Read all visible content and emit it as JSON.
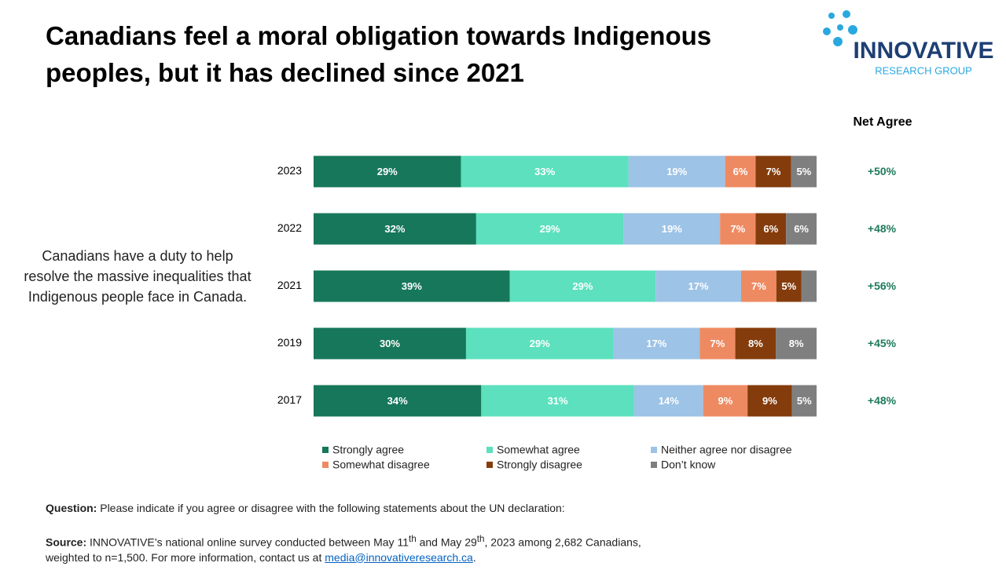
{
  "title": "Canadians feel a moral obligation towards Indigenous peoples, but it has declined since 2021",
  "logo": {
    "name": "INNOVATIVE",
    "subtitle": "RESEARCH GROUP"
  },
  "statement": "Canadians have a duty to help resolve the massive inequalities that Indigenous people face in Canada.",
  "chart_data": {
    "type": "bar",
    "horizontal": true,
    "stack": "percent",
    "categories": [
      "2023",
      "2022",
      "2021",
      "2019",
      "2017"
    ],
    "series": [
      {
        "name": "Strongly agree",
        "color": "#17775a",
        "values": [
          29,
          32,
          39,
          30,
          34
        ],
        "value_labels": [
          "29%",
          "32%",
          "39%",
          "30%",
          "34%"
        ]
      },
      {
        "name": "Somewhat agree",
        "color": "#5ce0be",
        "values": [
          33,
          29,
          29,
          29,
          31
        ],
        "value_labels": [
          "33%",
          "29%",
          "29%",
          "29%",
          "31%"
        ]
      },
      {
        "name": "Neither agree nor disagree",
        "color": "#9dc3e6",
        "values": [
          19,
          19,
          17,
          17,
          14
        ],
        "value_labels": [
          "19%",
          "19%",
          "17%",
          "17%",
          "14%"
        ]
      },
      {
        "name": "Somewhat disagree",
        "color": "#ee8a62",
        "values": [
          6,
          7,
          7,
          7,
          9
        ],
        "value_labels": [
          "6%",
          "7%",
          "7%",
          "7%",
          "9%"
        ]
      },
      {
        "name": "Strongly disagree",
        "color": "#843c0c",
        "values": [
          7,
          6,
          5,
          8,
          9
        ],
        "value_labels": [
          "7%",
          "6%",
          "5%",
          "8%",
          "9%"
        ]
      },
      {
        "name": "Don’t know",
        "color": "#7f7f7f",
        "values": [
          5,
          6,
          3,
          8,
          5
        ],
        "value_labels": [
          "5%",
          "6%",
          null,
          "8%",
          "5%"
        ]
      }
    ],
    "net_agree": {
      "title": "Net Agree",
      "color": "#1d7a5c",
      "values": [
        50,
        48,
        56,
        45,
        48
      ],
      "value_labels": [
        "+50%",
        "+48%",
        "+56%",
        "+45%",
        "+48%"
      ]
    }
  },
  "footer": {
    "question_label": "Question:",
    "question": "Please indicate if you agree or disagree with the following statements about the UN declaration:",
    "source_label": "Source:",
    "source_parts": [
      "INNOVATIVE’s national online survey conducted between May 11",
      "th",
      " and May 29",
      "th",
      ", 2023 among 2,682 Canadians, weighted to n=1,500. For more information, contact us at ",
      "media@innovativeresearch.ca",
      "."
    ]
  }
}
